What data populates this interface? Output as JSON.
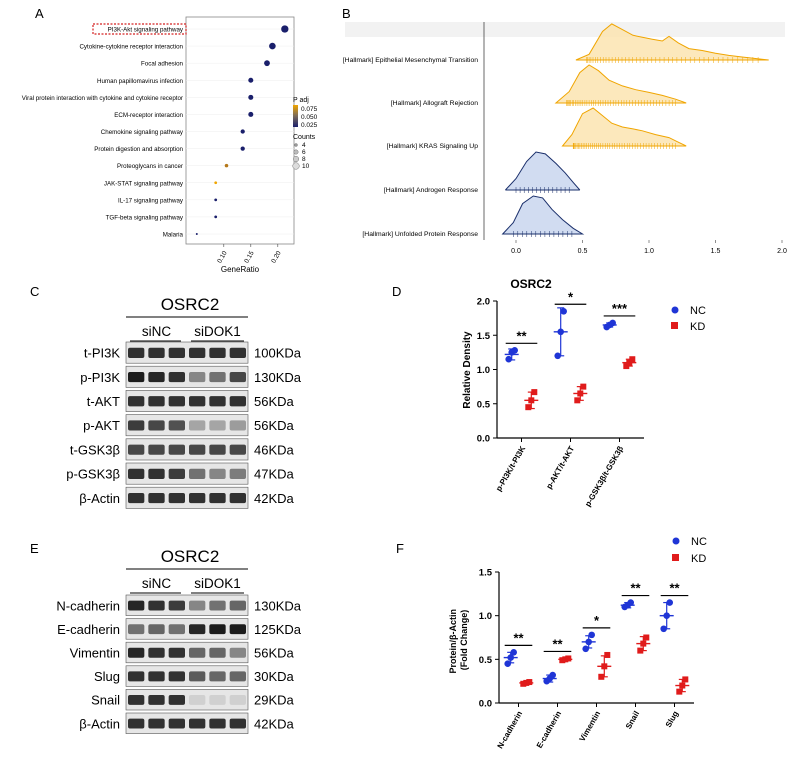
{
  "panels": {
    "A": {
      "label": "A",
      "legend": {
        "padj_title": "P adj",
        "padj_ticks": [
          "0.075",
          "0.050",
          "0.025"
        ],
        "counts_title": "Counts",
        "counts_ticks": [
          "4",
          "6",
          "8",
          "10"
        ]
      },
      "colors": {
        "high": "#f0a500",
        "mid": "#7a6a5a",
        "low": "#1a1f6b",
        "highlight": "#d42020"
      }
    },
    "B": {
      "label": "B"
    },
    "C": {
      "label": "C",
      "title": "OSRC2",
      "groups": [
        "siNC",
        "siDOK1"
      ],
      "rows": [
        {
          "name": "t-PI3K",
          "size": "100KDa"
        },
        {
          "name": "p-PI3K",
          "size": "130KDa"
        },
        {
          "name": "t-AKT",
          "size": "56KDa"
        },
        {
          "name": "p-AKT",
          "size": "56KDa"
        },
        {
          "name": "t-GSK3β",
          "size": "46KDa"
        },
        {
          "name": "p-GSK3β",
          "size": "47KDa"
        },
        {
          "name": "β-Actin",
          "size": "42KDa"
        }
      ]
    },
    "D": {
      "label": "D"
    },
    "E": {
      "label": "E",
      "title": "OSRC2",
      "groups": [
        "siNC",
        "siDOK1"
      ],
      "rows": [
        {
          "name": "N-cadherin",
          "size": "130KDa"
        },
        {
          "name": "E-cadherin",
          "size": "125KDa"
        },
        {
          "name": "Vimentin",
          "size": "56KDa"
        },
        {
          "name": "Slug",
          "size": "30KDa"
        },
        {
          "name": "Snail",
          "size": "29KDa"
        },
        {
          "name": "β-Actin",
          "size": "42KDa"
        }
      ]
    },
    "F": {
      "label": "F"
    }
  },
  "colors": {
    "nc": "#1f35d6",
    "kd": "#e01b1b",
    "ridge": "#f0a500",
    "ridge_fill": "#fbe4b0",
    "ridge_blue": "#1a2f6b",
    "ridge_blue_fill": "#c9d6ef"
  },
  "chart_data": [
    {
      "id": "A",
      "type": "scatter",
      "title": "",
      "xlabel": "GeneRatio",
      "ylabel": "",
      "xlim": [
        0.03,
        0.23
      ],
      "xticks": [
        "0.10",
        "0.15",
        "0.20"
      ],
      "xtick_values": [
        0.1,
        0.15,
        0.2
      ],
      "categories": [
        "PI3K-Akt signaling pathway",
        "Cytokine-cytokine receptor interaction",
        "Focal adhesion",
        "Human papillomavirus infection",
        "Viral protein interaction with cytokine and cytokine receptor",
        "ECM-receptor interaction",
        "Chemokine signaling pathway",
        "Protein digestion and absorption",
        "Proteoglycans in cancer",
        "JAK-STAT signaling pathway",
        "IL-17 signaling pathway",
        "TGF-beta signaling pathway",
        "Malaria"
      ],
      "gene_ratio": [
        0.213,
        0.19,
        0.18,
        0.15,
        0.15,
        0.15,
        0.135,
        0.135,
        0.105,
        0.085,
        0.085,
        0.085,
        0.05
      ],
      "count": [
        10,
        9,
        8,
        7,
        7,
        7,
        6,
        6,
        5,
        4,
        4,
        4,
        3
      ],
      "padj": [
        0.02,
        0.02,
        0.02,
        0.02,
        0.02,
        0.02,
        0.02,
        0.02,
        0.06,
        0.08,
        0.02,
        0.02,
        0.02
      ],
      "highlight": "PI3K-Akt signaling pathway"
    },
    {
      "id": "B",
      "type": "area",
      "title": "",
      "xlabel": "",
      "ylabel": "",
      "xlim": [
        -0.1,
        2.0
      ],
      "xticks": [
        "0.0",
        "0.5",
        "1.0",
        "1.5",
        "2.0"
      ],
      "xtick_values": [
        0.0,
        0.5,
        1.0,
        1.5,
        2.0
      ],
      "series": [
        {
          "name": "[Hallmark] Epithelial Mesenchymal Transition",
          "color": "orange",
          "peak": 0.7,
          "min": 0.45,
          "max": 1.9,
          "curve": [
            [
              0.45,
              0
            ],
            [
              0.55,
              0.15
            ],
            [
              0.65,
              0.75
            ],
            [
              0.72,
              0.95
            ],
            [
              0.8,
              0.8
            ],
            [
              0.88,
              0.65
            ],
            [
              0.95,
              0.6
            ],
            [
              1.02,
              0.55
            ],
            [
              1.1,
              0.5
            ],
            [
              1.15,
              0.62
            ],
            [
              1.22,
              0.45
            ],
            [
              1.3,
              0.3
            ],
            [
              1.4,
              0.25
            ],
            [
              1.5,
              0.18
            ],
            [
              1.6,
              0.12
            ],
            [
              1.7,
              0.08
            ],
            [
              1.8,
              0.04
            ],
            [
              1.9,
              0
            ]
          ]
        },
        {
          "name": "[Hallmark] Allograft Rejection",
          "color": "orange",
          "peak": 0.55,
          "min": 0.3,
          "max": 1.28,
          "curve": [
            [
              0.3,
              0
            ],
            [
              0.4,
              0.3
            ],
            [
              0.48,
              0.8
            ],
            [
              0.55,
              1.0
            ],
            [
              0.62,
              0.85
            ],
            [
              0.7,
              0.6
            ],
            [
              0.8,
              0.45
            ],
            [
              0.9,
              0.35
            ],
            [
              1.0,
              0.28
            ],
            [
              1.1,
              0.2
            ],
            [
              1.2,
              0.1
            ],
            [
              1.28,
              0
            ]
          ]
        },
        {
          "name": "[Hallmark] KRAS Signaling Up",
          "color": "orange",
          "peak": 0.55,
          "min": 0.35,
          "max": 1.28,
          "curve": [
            [
              0.35,
              0
            ],
            [
              0.42,
              0.3
            ],
            [
              0.5,
              0.85
            ],
            [
              0.58,
              1.0
            ],
            [
              0.65,
              0.8
            ],
            [
              0.72,
              0.6
            ],
            [
              0.8,
              0.5
            ],
            [
              0.88,
              0.45
            ],
            [
              0.95,
              0.4
            ],
            [
              1.05,
              0.3
            ],
            [
              1.15,
              0.22
            ],
            [
              1.22,
              0.1
            ],
            [
              1.28,
              0
            ]
          ]
        },
        {
          "name": "[Hallmark] Androgen Response",
          "color": "blue",
          "peak": 0.17,
          "min": -0.08,
          "max": 0.48,
          "curve": [
            [
              -0.08,
              0
            ],
            [
              0.0,
              0.3
            ],
            [
              0.08,
              0.75
            ],
            [
              0.15,
              1.0
            ],
            [
              0.22,
              0.95
            ],
            [
              0.3,
              0.7
            ],
            [
              0.37,
              0.45
            ],
            [
              0.43,
              0.2
            ],
            [
              0.48,
              0
            ]
          ]
        },
        {
          "name": "[Hallmark] Unfolded Protein Response",
          "color": "blue",
          "peak": 0.15,
          "min": -0.1,
          "max": 0.5,
          "curve": [
            [
              -0.1,
              0
            ],
            [
              -0.02,
              0.3
            ],
            [
              0.05,
              0.8
            ],
            [
              0.13,
              1.0
            ],
            [
              0.2,
              0.95
            ],
            [
              0.27,
              0.65
            ],
            [
              0.35,
              0.38
            ],
            [
              0.43,
              0.15
            ],
            [
              0.5,
              0
            ]
          ]
        }
      ]
    },
    {
      "id": "D",
      "type": "scatter",
      "title": "OSRC2",
      "xlabel": "",
      "ylabel": "Relative Density",
      "ylim": [
        0,
        2.0
      ],
      "yticks": [
        "0.0",
        "0.5",
        "1.0",
        "1.5",
        "2.0"
      ],
      "ytick_values": [
        0.0,
        0.5,
        1.0,
        1.5,
        2.0
      ],
      "categories": [
        "p-PI3K/t-PI3K",
        "p-AKT/t-AKT",
        "p-GSK3β/t-GSK3β"
      ],
      "legend": [
        "NC",
        "KD"
      ],
      "series": [
        {
          "name": "NC",
          "means": [
            1.22,
            1.55,
            1.65
          ],
          "sd": [
            0.08,
            0.35,
            0.03
          ],
          "points": [
            [
              1.15,
              1.25,
              1.28
            ],
            [
              1.2,
              1.55,
              1.85
            ],
            [
              1.62,
              1.65,
              1.68
            ]
          ]
        },
        {
          "name": "KD",
          "means": [
            0.55,
            0.65,
            1.1
          ],
          "sd": [
            0.12,
            0.1,
            0.05
          ],
          "points": [
            [
              0.45,
              0.55,
              0.67
            ],
            [
              0.55,
              0.65,
              0.75
            ],
            [
              1.05,
              1.1,
              1.15
            ]
          ]
        }
      ],
      "significance": [
        "**",
        "*",
        "***"
      ]
    },
    {
      "id": "F",
      "type": "scatter",
      "title": "",
      "xlabel": "",
      "ylabel": "Protein/β-Actin\n(Fold Change)",
      "ylim": [
        0,
        1.5
      ],
      "yticks": [
        "0.0",
        "0.5",
        "1.0",
        "1.5"
      ],
      "ytick_values": [
        0.0,
        0.5,
        1.0,
        1.5
      ],
      "categories": [
        "N-cadherin",
        "E-cadherin",
        "Vimentin",
        "Snail",
        "Slug"
      ],
      "legend": [
        "NC",
        "KD"
      ],
      "series": [
        {
          "name": "NC",
          "means": [
            0.52,
            0.28,
            0.7,
            1.12,
            1.0
          ],
          "sd": [
            0.06,
            0.04,
            0.07,
            0.03,
            0.15
          ],
          "points": [
            [
              0.45,
              0.52,
              0.58
            ],
            [
              0.25,
              0.28,
              0.32
            ],
            [
              0.62,
              0.7,
              0.78
            ],
            [
              1.1,
              1.12,
              1.15
            ],
            [
              0.85,
              1.0,
              1.15
            ]
          ]
        },
        {
          "name": "KD",
          "means": [
            0.23,
            0.5,
            0.42,
            0.68,
            0.2
          ],
          "sd": [
            0.01,
            0.01,
            0.12,
            0.08,
            0.07
          ],
          "points": [
            [
              0.22,
              0.23,
              0.24
            ],
            [
              0.49,
              0.5,
              0.51
            ],
            [
              0.3,
              0.42,
              0.55
            ],
            [
              0.6,
              0.68,
              0.75
            ],
            [
              0.13,
              0.2,
              0.27
            ]
          ]
        }
      ],
      "significance": [
        "**",
        "**",
        "*",
        "**",
        "**"
      ]
    }
  ]
}
